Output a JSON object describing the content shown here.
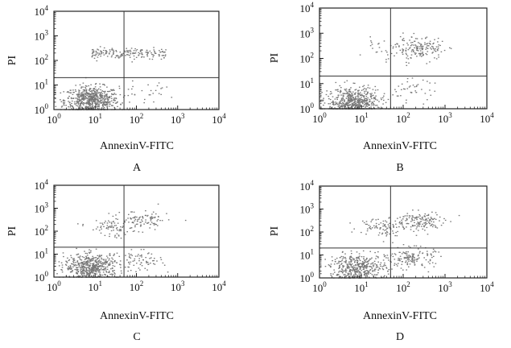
{
  "figure": {
    "panels": [
      {
        "letter": "A",
        "xlabel": "AnnexinV-FITC",
        "ylabel": "PI"
      },
      {
        "letter": "B",
        "xlabel": "AnnexinV-FITC",
        "ylabel": "PI"
      },
      {
        "letter": "C",
        "xlabel": "AnnexinV-FITC",
        "ylabel": "PI"
      },
      {
        "letter": "D",
        "xlabel": "AnnexinV-FITC",
        "ylabel": "PI"
      }
    ],
    "tick_labels": [
      "10^0",
      "10^1",
      "10^2",
      "10^3",
      "10^4"
    ]
  },
  "chart_data": [
    {
      "type": "scatter",
      "title": "A",
      "xlabel": "AnnexinV-FITC",
      "ylabel": "PI",
      "xscale": "log",
      "yscale": "log",
      "xlim": [
        1,
        10000
      ],
      "ylim": [
        1,
        10000
      ],
      "quadrant_gate": {
        "x": 50,
        "y": 20
      },
      "point_color": "#777777",
      "clusters": [
        {
          "x": 8,
          "y": 2.5,
          "count": 650
        },
        {
          "x": 50,
          "y": 200,
          "count": 170,
          "x_range": [
            8,
            500
          ]
        },
        {
          "x": 200,
          "y": 5,
          "count": 25
        }
      ]
    },
    {
      "type": "scatter",
      "title": "B",
      "xlabel": "AnnexinV-FITC",
      "ylabel": "PI",
      "xscale": "log",
      "yscale": "log",
      "xlim": [
        1,
        10000
      ],
      "ylim": [
        1,
        10000
      ],
      "quadrant_gate": {
        "x": 50,
        "y": 20
      },
      "point_color": "#777777",
      "clusters": [
        {
          "x": 6,
          "y": 2,
          "count": 560
        },
        {
          "x": 250,
          "y": 250,
          "count": 160
        },
        {
          "x": 30,
          "y": 200,
          "count": 30
        },
        {
          "x": 150,
          "y": 6,
          "count": 40
        }
      ]
    },
    {
      "type": "scatter",
      "title": "C",
      "xlabel": "AnnexinV-FITC",
      "ylabel": "PI",
      "xscale": "log",
      "yscale": "log",
      "xlim": [
        1,
        10000
      ],
      "ylim": [
        1,
        10000
      ],
      "quadrant_gate": {
        "x": 50,
        "y": 20
      },
      "point_color": "#777777",
      "clusters": [
        {
          "x": 8,
          "y": 3,
          "count": 520
        },
        {
          "x": 25,
          "y": 150,
          "count": 80
        },
        {
          "x": 150,
          "y": 300,
          "count": 90
        },
        {
          "x": 120,
          "y": 5,
          "count": 70
        }
      ]
    },
    {
      "type": "scatter",
      "title": "D",
      "xlabel": "AnnexinV-FITC",
      "ylabel": "PI",
      "xscale": "log",
      "yscale": "log",
      "xlim": [
        1,
        10000
      ],
      "ylim": [
        1,
        10000
      ],
      "quadrant_gate": {
        "x": 50,
        "y": 20
      },
      "point_color": "#777777",
      "clusters": [
        {
          "x": 8,
          "y": 3,
          "count": 420
        },
        {
          "x": 30,
          "y": 200,
          "count": 90
        },
        {
          "x": 250,
          "y": 300,
          "count": 140
        },
        {
          "x": 150,
          "y": 8,
          "count": 150
        }
      ]
    }
  ]
}
